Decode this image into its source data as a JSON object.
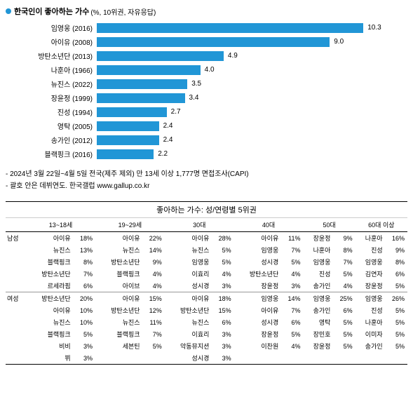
{
  "chart": {
    "bullet_color": "#2196d6",
    "title": "한국인이 좋아하는 가수",
    "subtitle": "(%, 10위권, 자유응답)",
    "bar_color": "#2196d6",
    "max_value": 12,
    "items": [
      {
        "label": "임영웅 (2016)",
        "value": 10.3
      },
      {
        "label": "아이유 (2008)",
        "value": 9.0,
        "display": "9.0"
      },
      {
        "label": "방탄소년단 (2013)",
        "value": 4.9
      },
      {
        "label": "나훈아 (1966)",
        "value": 4.0,
        "display": "4.0"
      },
      {
        "label": "뉴진스 (2022)",
        "value": 3.5
      },
      {
        "label": "장윤정 (1999)",
        "value": 3.4
      },
      {
        "label": "진성 (1994)",
        "value": 2.7
      },
      {
        "label": "영탁 (2005)",
        "value": 2.4
      },
      {
        "label": "송가인 (2012)",
        "value": 2.4
      },
      {
        "label": "블랙핑크 (2016)",
        "value": 2.2
      }
    ]
  },
  "footnotes": [
    "- 2024년 3월 22일~4월 5일 전국(제주 제외) 만 13세 이상 1,777명 면접조사(CAPI)",
    "- 괄호 안은 데뷔연도. 한국갤럽 www.gallup.co.kr"
  ],
  "table": {
    "title": "좋아하는 가수: 성/연령별 5위권",
    "age_groups": [
      "13~18세",
      "19~29세",
      "30대",
      "40대",
      "50대",
      "60대 이상"
    ],
    "sections": [
      {
        "gender": "남성",
        "rows": [
          [
            {
              "n": "아이유",
              "p": "18%"
            },
            {
              "n": "아이유",
              "p": "22%"
            },
            {
              "n": "아이유",
              "p": "28%"
            },
            {
              "n": "아이유",
              "p": "11%"
            },
            {
              "n": "장윤정",
              "p": "9%"
            },
            {
              "n": "나훈아",
              "p": "16%"
            }
          ],
          [
            {
              "n": "뉴진스",
              "p": "13%"
            },
            {
              "n": "뉴진스",
              "p": "14%"
            },
            {
              "n": "뉴진스",
              "p": "5%"
            },
            {
              "n": "임영웅",
              "p": "7%"
            },
            {
              "n": "나훈아",
              "p": "8%"
            },
            {
              "n": "진성",
              "p": "9%"
            }
          ],
          [
            {
              "n": "블랙핑크",
              "p": "8%"
            },
            {
              "n": "방탄소년단",
              "p": "9%"
            },
            {
              "n": "임영웅",
              "p": "5%"
            },
            {
              "n": "성시경",
              "p": "5%"
            },
            {
              "n": "임영웅",
              "p": "7%"
            },
            {
              "n": "임영웅",
              "p": "8%"
            }
          ],
          [
            {
              "n": "방탄소년단",
              "p": "7%"
            },
            {
              "n": "블랙핑크",
              "p": "4%"
            },
            {
              "n": "이효리",
              "p": "4%"
            },
            {
              "n": "방탄소년단",
              "p": "4%"
            },
            {
              "n": "진성",
              "p": "5%"
            },
            {
              "n": "김연자",
              "p": "6%"
            }
          ],
          [
            {
              "n": "르세라핌",
              "p": "6%"
            },
            {
              "n": "아이브",
              "p": "4%"
            },
            {
              "n": "성시경",
              "p": "3%"
            },
            {
              "n": "장윤정",
              "p": "3%"
            },
            {
              "n": "송가인",
              "p": "4%"
            },
            {
              "n": "장윤정",
              "p": "5%"
            }
          ]
        ]
      },
      {
        "gender": "여성",
        "rows": [
          [
            {
              "n": "방탄소년단",
              "p": "20%"
            },
            {
              "n": "아이유",
              "p": "15%"
            },
            {
              "n": "아이유",
              "p": "18%"
            },
            {
              "n": "임영웅",
              "p": "14%"
            },
            {
              "n": "임영웅",
              "p": "25%"
            },
            {
              "n": "임영웅",
              "p": "26%"
            }
          ],
          [
            {
              "n": "아이유",
              "p": "10%"
            },
            {
              "n": "방탄소년단",
              "p": "12%"
            },
            {
              "n": "방탄소년단",
              "p": "15%"
            },
            {
              "n": "아이유",
              "p": "7%"
            },
            {
              "n": "송가인",
              "p": "6%"
            },
            {
              "n": "진성",
              "p": "5%"
            }
          ],
          [
            {
              "n": "뉴진스",
              "p": "10%"
            },
            {
              "n": "뉴진스",
              "p": "11%"
            },
            {
              "n": "뉴진스",
              "p": "6%"
            },
            {
              "n": "성시경",
              "p": "6%"
            },
            {
              "n": "영탁",
              "p": "5%"
            },
            {
              "n": "나훈아",
              "p": "5%"
            }
          ],
          [
            {
              "n": "블랙핑크",
              "p": "5%"
            },
            {
              "n": "블랙핑크",
              "p": "7%"
            },
            {
              "n": "이효리",
              "p": "3%"
            },
            {
              "n": "장윤정",
              "p": "5%"
            },
            {
              "n": "장민호",
              "p": "5%"
            },
            {
              "n": "이미자",
              "p": "5%"
            }
          ],
          [
            {
              "n": "비비",
              "p": "3%"
            },
            {
              "n": "세븐틴",
              "p": "5%"
            },
            {
              "n": "악동뮤지션",
              "p": "3%"
            },
            {
              "n": "이찬원",
              "p": "4%"
            },
            {
              "n": "장윤정",
              "p": "5%"
            },
            {
              "n": "송가인",
              "p": "5%"
            }
          ],
          [
            {
              "n": "뷔",
              "p": "3%"
            },
            {
              "n": "",
              "p": ""
            },
            {
              "n": "성시경",
              "p": "3%"
            },
            {
              "n": "",
              "p": ""
            },
            {
              "n": "",
              "p": ""
            },
            {
              "n": "",
              "p": ""
            }
          ]
        ]
      }
    ]
  }
}
